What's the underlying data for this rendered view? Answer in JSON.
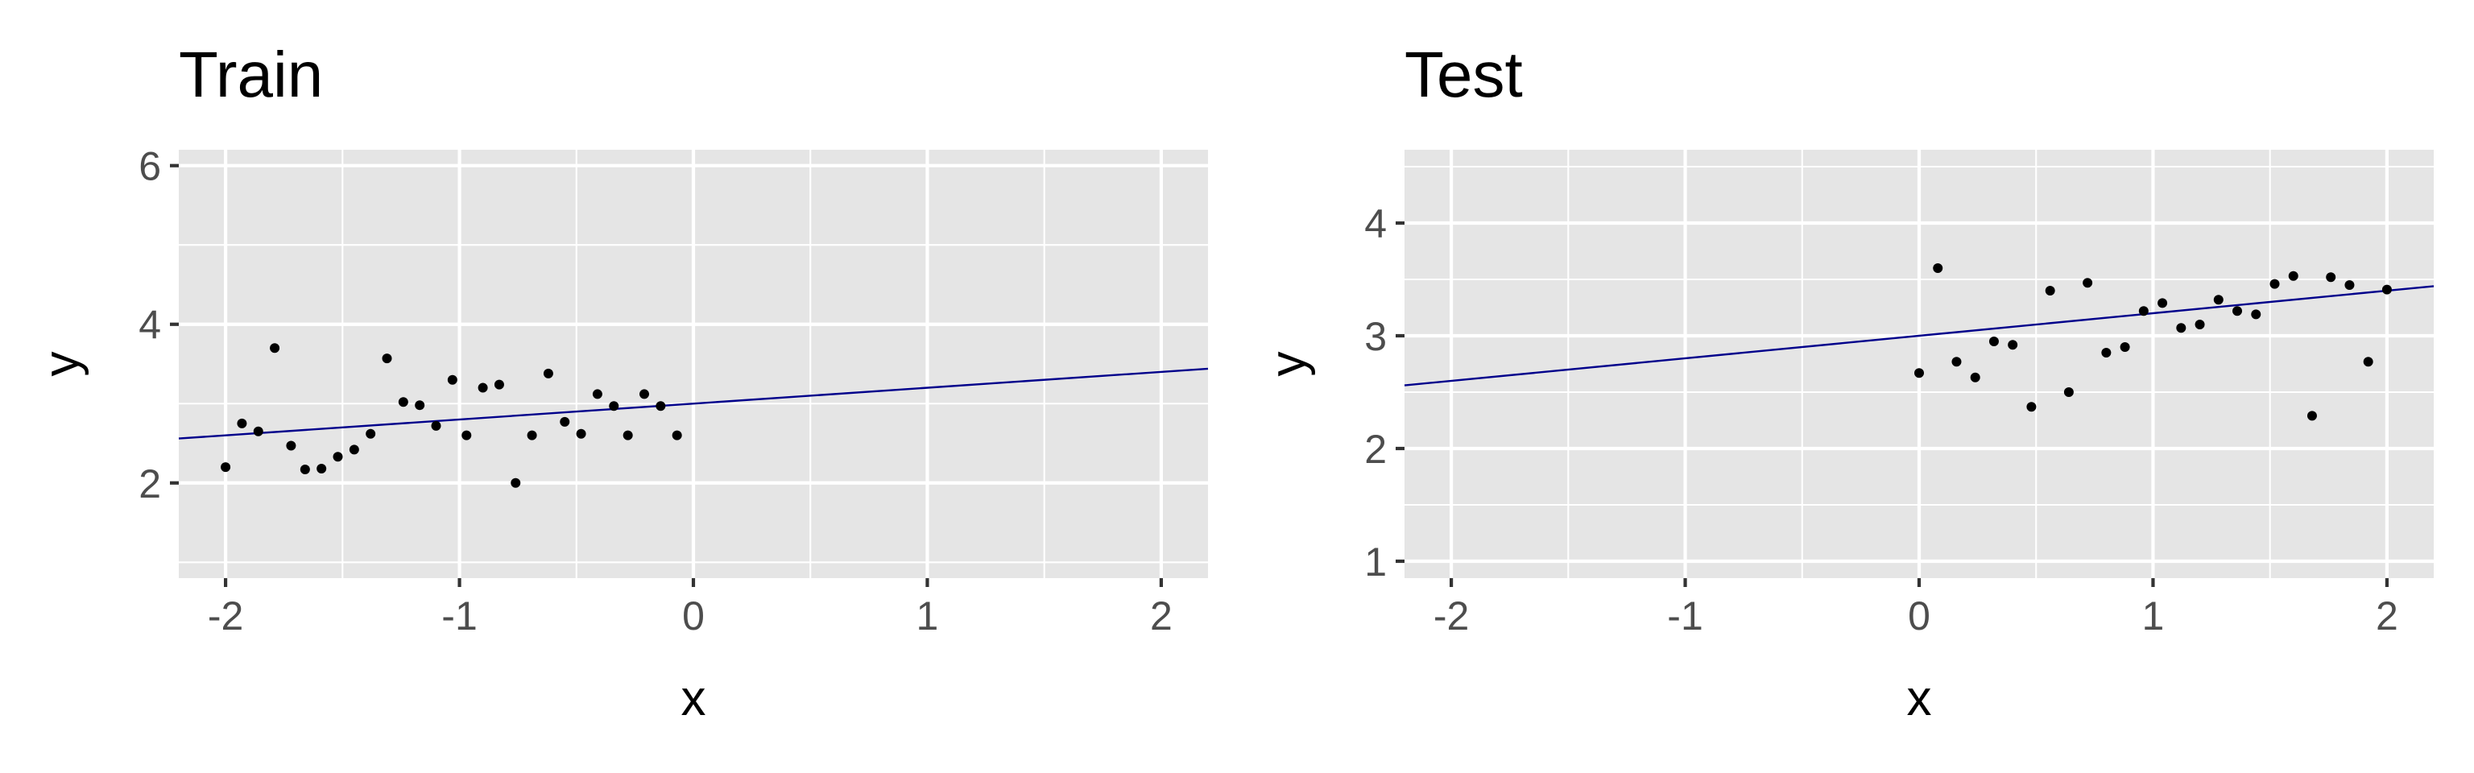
{
  "chart_data": [
    {
      "type": "scatter",
      "title": "Train",
      "xlabel": "x",
      "ylabel": "y",
      "xlim": [
        -2.2,
        2.2
      ],
      "ylim": [
        0.8,
        6.2
      ],
      "x_breaks": [
        -2,
        -1,
        0,
        1,
        2
      ],
      "x_tick_labels": [
        "-2",
        "-1",
        "0",
        "1",
        "2"
      ],
      "y_breaks": [
        2,
        4,
        6
      ],
      "y_tick_labels": [
        "2",
        "4",
        "6"
      ],
      "grid": true,
      "fit_line": {
        "intercept": 3.0,
        "slope": 0.2,
        "color": "#00008b"
      },
      "points": {
        "x": [
          -2.0,
          -1.93,
          -1.86,
          -1.79,
          -1.72,
          -1.66,
          -1.59,
          -1.52,
          -1.45,
          -1.38,
          -1.31,
          -1.24,
          -1.17,
          -1.1,
          -1.03,
          -0.97,
          -0.9,
          -0.83,
          -0.76,
          -0.69,
          -0.62,
          -0.55,
          -0.48,
          -0.41,
          -0.34,
          -0.28,
          -0.21,
          -0.14,
          -0.07
        ],
        "y": [
          2.2,
          2.75,
          2.65,
          3.7,
          2.47,
          2.17,
          2.18,
          2.33,
          2.42,
          2.62,
          3.57,
          3.02,
          2.98,
          2.72,
          3.3,
          2.6,
          3.2,
          3.24,
          2.0,
          2.6,
          3.38,
          2.77,
          2.62,
          3.12,
          2.97,
          2.6,
          3.12,
          2.97,
          2.6
        ]
      }
    },
    {
      "type": "scatter",
      "title": "Test",
      "xlabel": "x",
      "ylabel": "y",
      "xlim": [
        -2.2,
        2.2
      ],
      "ylim": [
        0.85,
        4.65
      ],
      "x_breaks": [
        -2,
        -1,
        0,
        1,
        2
      ],
      "x_tick_labels": [
        "-2",
        "-1",
        "0",
        "1",
        "2"
      ],
      "y_breaks": [
        1,
        2,
        3,
        4
      ],
      "y_tick_labels": [
        "1",
        "2",
        "3",
        "4"
      ],
      "grid": true,
      "fit_line": {
        "intercept": 3.0,
        "slope": 0.2,
        "color": "#00008b"
      },
      "points": {
        "x": [
          0.0,
          0.08,
          0.16,
          0.24,
          0.32,
          0.4,
          0.48,
          0.56,
          0.64,
          0.72,
          0.8,
          0.88,
          0.96,
          1.04,
          1.12,
          1.2,
          1.28,
          1.36,
          1.44,
          1.52,
          1.6,
          1.68,
          1.76,
          1.84,
          1.92,
          2.0
        ],
        "y": [
          2.67,
          3.6,
          2.77,
          2.63,
          2.95,
          2.92,
          2.37,
          3.4,
          2.5,
          3.47,
          2.85,
          2.9,
          3.22,
          3.29,
          3.07,
          3.1,
          3.32,
          3.22,
          3.19,
          3.46,
          3.53,
          2.29,
          3.52,
          3.45,
          2.77,
          3.41
        ]
      }
    }
  ]
}
